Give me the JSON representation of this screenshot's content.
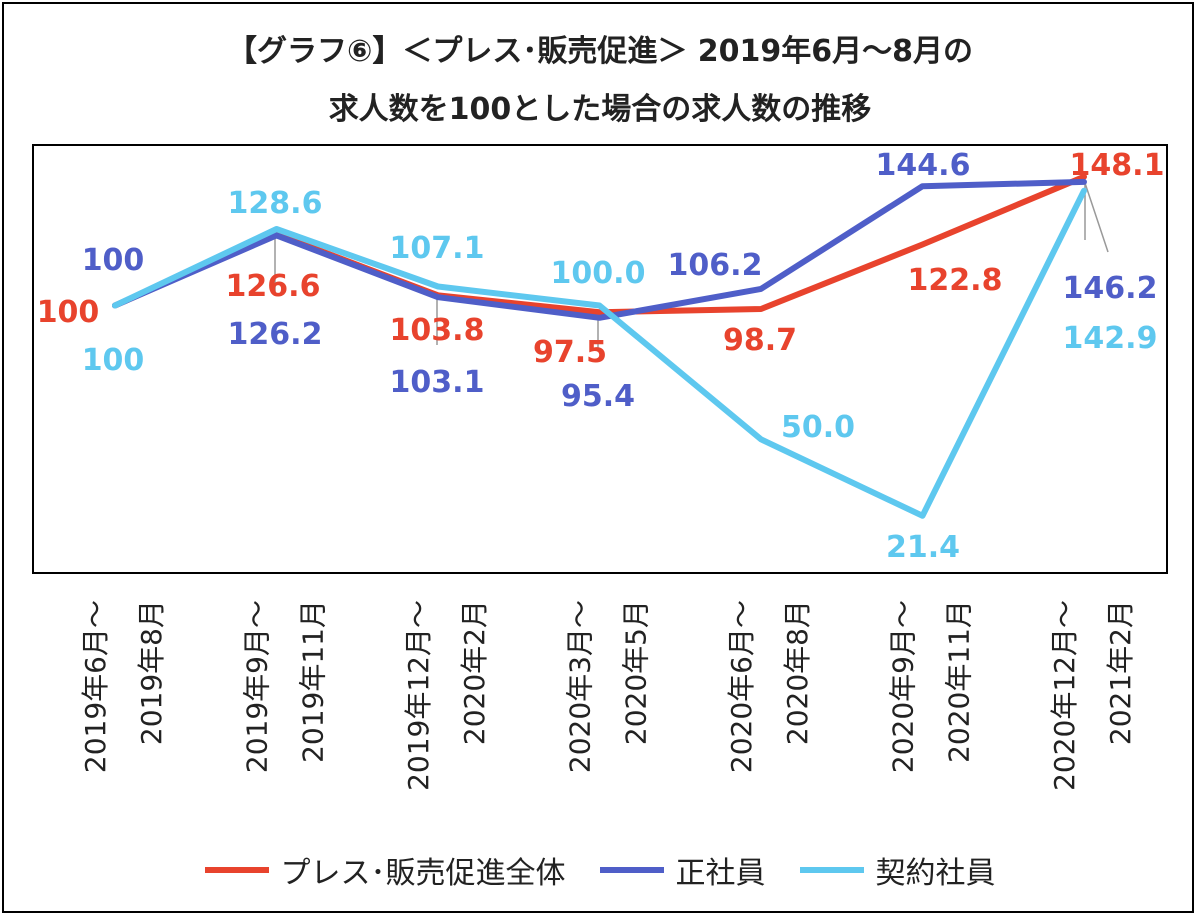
{
  "chart_data": {
    "type": "line",
    "title_line1": "【グラフ⑥】＜プレス･販売促進＞ 2019年6月～8月の",
    "title_line2": "求人数を100とした場合の求人数の推移",
    "categories": [
      [
        "2019年6月～",
        "2019年8月"
      ],
      [
        "2019年9月～",
        "2019年11月"
      ],
      [
        "2019年12月～",
        "2020年2月"
      ],
      [
        "2020年3月～",
        "2020年5月"
      ],
      [
        "2020年6月～",
        "2020年8月"
      ],
      [
        "2020年9月～",
        "2020年11月"
      ],
      [
        "2020年12月～",
        "2021年2月"
      ]
    ],
    "ylim": [
      0,
      160
    ],
    "series": [
      {
        "name": "プレス･販売促進全体",
        "color": "#e8432d",
        "values": [
          100,
          126.6,
          103.8,
          97.5,
          98.7,
          122.8,
          148.1
        ],
        "labels": [
          "100",
          "126.6",
          "103.8",
          "97.5",
          "98.7",
          "122.8",
          "148.1"
        ]
      },
      {
        "name": "正社員",
        "color": "#4f5ec8",
        "values": [
          100,
          126.2,
          103.1,
          95.4,
          106.2,
          144.6,
          146.2
        ],
        "labels": [
          "100",
          "126.2",
          "103.1",
          "95.4",
          "106.2",
          "144.6",
          "146.2"
        ]
      },
      {
        "name": "契約社員",
        "color": "#5ec8ef",
        "values": [
          100,
          128.6,
          107.1,
          100.0,
          50.0,
          21.4,
          142.9
        ],
        "labels": [
          "100",
          "128.6",
          "107.1",
          "100.0",
          "50.0",
          "21.4",
          "142.9"
        ]
      }
    ]
  }
}
